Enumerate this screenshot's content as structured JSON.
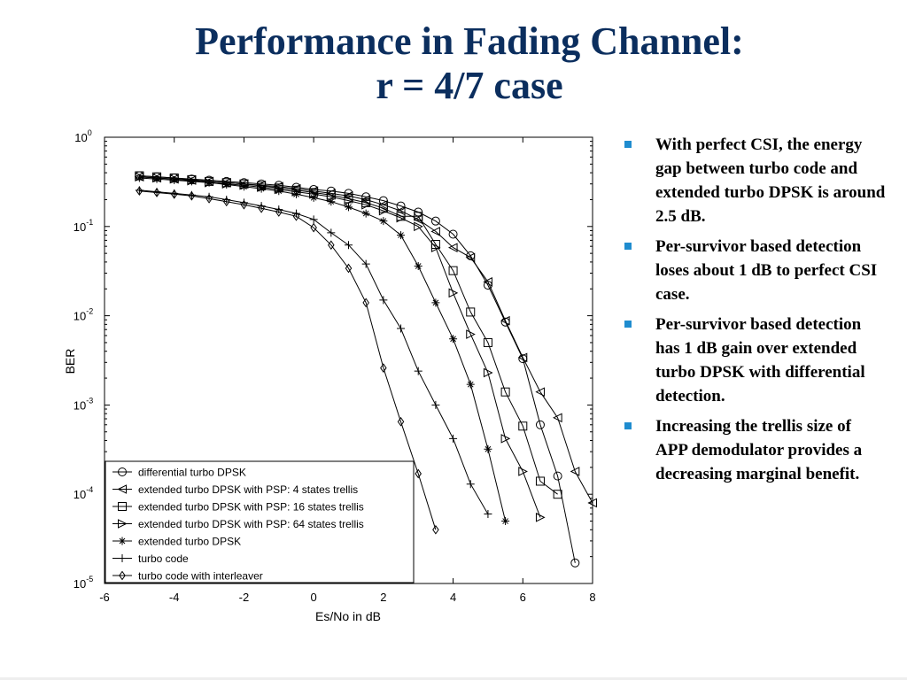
{
  "slide": {
    "title_line1": "Performance in Fading Channel:",
    "title_line2": "r = 4/7 case"
  },
  "bullets": [
    "With perfect CSI, the energy gap between turbo code and extended turbo DPSK is around 2.5 dB.",
    "Per-survivor based detection loses about 1 dB to perfect CSI case.",
    "Per-survivor based detection has 1 dB gain over extended turbo DPSK with differential detection.",
    "Increasing the trellis size of APP demodulator provides a  decreasing marginal benefit."
  ],
  "colors": {
    "title": "#0b2e5e",
    "bullet": "#1f8ccf",
    "plot": "#000000"
  },
  "chart_data": {
    "type": "line",
    "xlabel": "Es/No in dB",
    "ylabel": "BER",
    "xlim": [
      -6,
      8
    ],
    "ylim": [
      1e-05,
      1
    ],
    "yscale": "log",
    "xticks": [
      "-6",
      "-4",
      "-2",
      "0",
      "2",
      "4",
      "6",
      "8"
    ],
    "yticks": [
      {
        "base": "10",
        "exp": "0",
        "value": 1
      },
      {
        "base": "10",
        "exp": "-1",
        "value": 0.1
      },
      {
        "base": "10",
        "exp": "-2",
        "value": 0.01
      },
      {
        "base": "10",
        "exp": "-3",
        "value": 0.001
      },
      {
        "base": "10",
        "exp": "-4",
        "value": 0.0001
      },
      {
        "base": "10",
        "exp": "-5",
        "value": 1e-05
      }
    ],
    "grid": false,
    "legend_position": "bottom-left",
    "series": [
      {
        "name": "differential turbo DPSK",
        "marker": "circle",
        "x": [
          -5,
          -4.5,
          -4,
          -3.5,
          -3,
          -2.5,
          -2,
          -1.5,
          -1,
          -0.5,
          0,
          0.5,
          1,
          1.5,
          2,
          2.5,
          3,
          3.5,
          4,
          4.5,
          5,
          5.5,
          6,
          6.5,
          7,
          7.5
        ],
        "y": [
          0.37,
          0.36,
          0.35,
          0.34,
          0.33,
          0.32,
          0.31,
          0.3,
          0.29,
          0.275,
          0.26,
          0.25,
          0.235,
          0.215,
          0.195,
          0.17,
          0.145,
          0.115,
          0.082,
          0.047,
          0.022,
          0.0085,
          0.0033,
          0.0006,
          0.00016,
          1.7e-05
        ]
      },
      {
        "name": "extended turbo DPSK with PSP: 4 states trellis",
        "marker": "triangle-left",
        "x": [
          -5,
          -4.5,
          -4,
          -3.5,
          -3,
          -2.5,
          -2,
          -1.5,
          -1,
          -0.5,
          0,
          0.5,
          1,
          1.5,
          2,
          2.5,
          3,
          3.5,
          4,
          4.5,
          5,
          5.5,
          6,
          6.5,
          7,
          7.5,
          8
        ],
        "y": [
          0.36,
          0.35,
          0.34,
          0.33,
          0.32,
          0.31,
          0.3,
          0.29,
          0.28,
          0.265,
          0.25,
          0.235,
          0.22,
          0.2,
          0.175,
          0.15,
          0.12,
          0.088,
          0.058,
          0.045,
          0.024,
          0.0088,
          0.0034,
          0.0014,
          0.00072,
          0.00018,
          8e-05
        ]
      },
      {
        "name": "extended turbo DPSK with PSP: 16 states trellis",
        "marker": "square",
        "x": [
          -5,
          -4.5,
          -4,
          -3.5,
          -3,
          -2.5,
          -2,
          -1.5,
          -1,
          -0.5,
          0,
          0.5,
          1,
          1.5,
          2,
          2.5,
          3,
          3.5,
          4,
          4.5,
          5,
          5.5,
          6,
          6.5,
          7
        ],
        "y": [
          0.37,
          0.36,
          0.35,
          0.335,
          0.32,
          0.31,
          0.3,
          0.285,
          0.27,
          0.255,
          0.24,
          0.225,
          0.205,
          0.185,
          0.16,
          0.13,
          0.13,
          0.063,
          0.032,
          0.011,
          0.005,
          0.0014,
          0.00058,
          0.00014,
          0.0001
        ]
      },
      {
        "name": "extended turbo DPSK with PSP: 64 states trellis",
        "marker": "triangle-right",
        "x": [
          -5,
          -4.5,
          -4,
          -3.5,
          -3,
          -2.5,
          -2,
          -1.5,
          -1,
          -0.5,
          0,
          0.5,
          1,
          1.5,
          2,
          2.5,
          3,
          3.5,
          4,
          4.5,
          5,
          5.5,
          6,
          6.5
        ],
        "y": [
          0.36,
          0.35,
          0.34,
          0.325,
          0.31,
          0.3,
          0.29,
          0.275,
          0.26,
          0.245,
          0.23,
          0.215,
          0.195,
          0.175,
          0.15,
          0.125,
          0.1,
          0.058,
          0.018,
          0.0062,
          0.0023,
          0.00042,
          0.00018,
          5.5e-05
        ]
      },
      {
        "name": "extended turbo DPSK",
        "marker": "star",
        "x": [
          -5,
          -4.5,
          -4,
          -3.5,
          -3,
          -2.5,
          -2,
          -1.5,
          -1,
          -0.5,
          0,
          0.5,
          1,
          1.5,
          2,
          2.5,
          3,
          3.5,
          4,
          4.5,
          5,
          5.5
        ],
        "y": [
          0.35,
          0.34,
          0.33,
          0.32,
          0.31,
          0.295,
          0.28,
          0.265,
          0.25,
          0.23,
          0.21,
          0.19,
          0.165,
          0.14,
          0.115,
          0.08,
          0.036,
          0.014,
          0.0055,
          0.0017,
          0.00032,
          5e-05
        ]
      },
      {
        "name": "turbo code",
        "marker": "plus",
        "x": [
          -5,
          -4.5,
          -4,
          -3.5,
          -3,
          -2.5,
          -2,
          -1.5,
          -1,
          -0.5,
          0,
          0.5,
          1,
          1.5,
          2,
          2.5,
          3,
          3.5,
          4,
          4.5,
          5
        ],
        "y": [
          0.255,
          0.245,
          0.235,
          0.225,
          0.215,
          0.2,
          0.185,
          0.17,
          0.155,
          0.14,
          0.12,
          0.085,
          0.062,
          0.038,
          0.015,
          0.0072,
          0.0024,
          0.001,
          0.00042,
          0.00013,
          6e-05
        ]
      },
      {
        "name": "turbo code with interleaver",
        "marker": "diamond",
        "x": [
          -5,
          -4.5,
          -4,
          -3.5,
          -3,
          -2.5,
          -2,
          -1.5,
          -1,
          -0.5,
          0,
          0.5,
          1,
          1.5,
          2,
          2.5,
          3,
          3.5
        ],
        "y": [
          0.25,
          0.24,
          0.23,
          0.22,
          0.205,
          0.19,
          0.175,
          0.16,
          0.145,
          0.13,
          0.097,
          0.062,
          0.034,
          0.014,
          0.0026,
          0.00065,
          0.00017,
          4e-05
        ]
      }
    ]
  }
}
